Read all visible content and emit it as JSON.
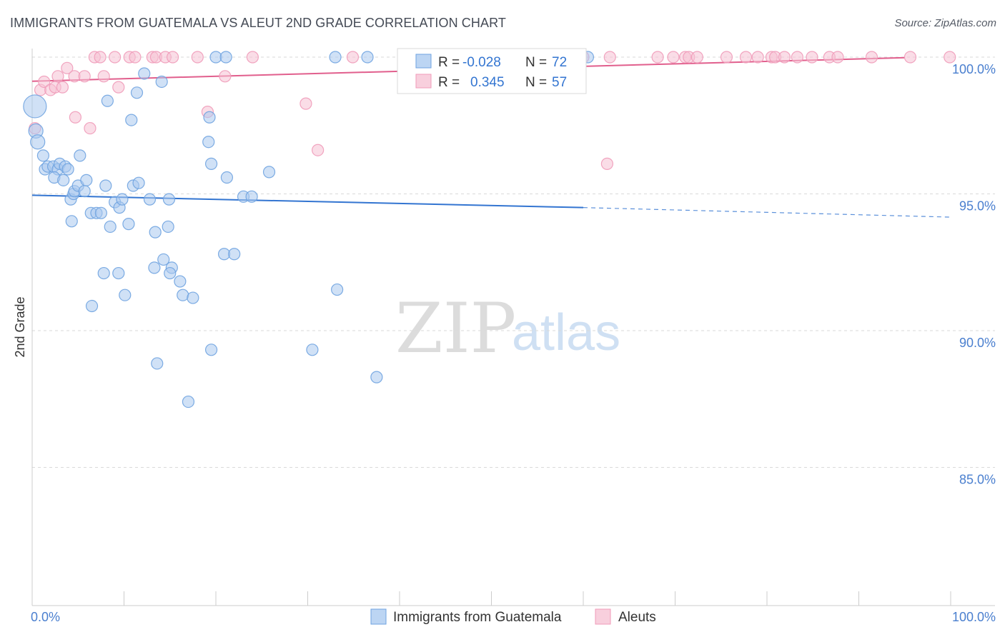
{
  "chart_data": {
    "type": "scatter",
    "title": "IMMIGRANTS FROM GUATEMALA VS ALEUT 2ND GRADE CORRELATION CHART",
    "source": "Source: ZipAtlas.com",
    "xlabel": "",
    "ylabel": "2nd Grade",
    "xlim": [
      0,
      100
    ],
    "ylim": [
      80.5,
      100.8
    ],
    "x_tick_labels": [
      {
        "value": 0,
        "label": "0.0%"
      },
      {
        "value": 100,
        "label": "100.0%"
      }
    ],
    "x_minor_ticks": [
      0,
      10,
      20,
      30,
      40,
      50,
      60,
      70,
      80,
      90,
      100
    ],
    "y_ticks": [
      {
        "value": 100,
        "label": "100.0%"
      },
      {
        "value": 95,
        "label": "95.0%"
      },
      {
        "value": 90,
        "label": "90.0%"
      },
      {
        "value": 85,
        "label": "85.0%"
      }
    ],
    "watermark": {
      "zip": "ZIP",
      "atlas": "atlas"
    },
    "series": [
      {
        "name": "Immigrants from Guatemala",
        "color": "#6fa3e0",
        "fill": "#a9c8ef",
        "line_color": "#3375d1",
        "r_label": "R =",
        "r_value": "-0.028",
        "n_label": "N =",
        "n_value": "72",
        "trend": {
          "x1": 0,
          "y1": 94.95,
          "x2": 60,
          "y2": 94.5,
          "dash_to_x": 100,
          "dash_to_y": 94.15
        },
        "points": [
          [
            0.3,
            98.2,
            16
          ],
          [
            0.4,
            97.3,
            10
          ],
          [
            0.6,
            96.9,
            10
          ],
          [
            1.2,
            96.4,
            8
          ],
          [
            1.4,
            95.9,
            8
          ],
          [
            1.7,
            96.0,
            8
          ],
          [
            2.3,
            96.0,
            8
          ],
          [
            2.8,
            95.9,
            8
          ],
          [
            3.0,
            96.1,
            8
          ],
          [
            2.4,
            95.6,
            8
          ],
          [
            3.4,
            95.5,
            8
          ],
          [
            3.6,
            96.0,
            8
          ],
          [
            3.9,
            95.9,
            8
          ],
          [
            4.2,
            94.8,
            8
          ],
          [
            4.5,
            95.0,
            8
          ],
          [
            5.2,
            96.4,
            8
          ],
          [
            4.6,
            95.1,
            8
          ],
          [
            5.0,
            95.3,
            8
          ],
          [
            5.7,
            95.1,
            8
          ],
          [
            5.9,
            95.5,
            8
          ],
          [
            6.4,
            94.3,
            8
          ],
          [
            7.0,
            94.3,
            8
          ],
          [
            7.5,
            94.3,
            8
          ],
          [
            8.0,
            95.3,
            8
          ],
          [
            8.5,
            93.8,
            8
          ],
          [
            9.0,
            94.7,
            8
          ],
          [
            9.5,
            94.5,
            8
          ],
          [
            9.8,
            94.8,
            8
          ],
          [
            10.5,
            93.9,
            8
          ],
          [
            11.0,
            95.3,
            8
          ],
          [
            11.6,
            95.4,
            8
          ],
          [
            4.3,
            94.0,
            8
          ],
          [
            8.2,
            98.4,
            8
          ],
          [
            10.8,
            97.7,
            8
          ],
          [
            11.4,
            98.7,
            8
          ],
          [
            12.2,
            99.4,
            8
          ],
          [
            14.1,
            99.1,
            8
          ],
          [
            12.8,
            94.8,
            8
          ],
          [
            14.9,
            94.8,
            8
          ],
          [
            13.4,
            93.6,
            8
          ],
          [
            14.8,
            93.8,
            8
          ],
          [
            14.3,
            92.6,
            8
          ],
          [
            13.3,
            92.3,
            8
          ],
          [
            15.2,
            92.3,
            8
          ],
          [
            15.0,
            92.1,
            8
          ],
          [
            16.1,
            91.8,
            8
          ],
          [
            7.8,
            92.1,
            8
          ],
          [
            9.4,
            92.1,
            8
          ],
          [
            10.1,
            91.3,
            8
          ],
          [
            6.5,
            90.9,
            8
          ],
          [
            16.4,
            91.3,
            8
          ],
          [
            17.5,
            91.2,
            8
          ],
          [
            13.6,
            88.8,
            8
          ],
          [
            17.0,
            87.4,
            8
          ],
          [
            19.2,
            96.9,
            8
          ],
          [
            19.3,
            97.8,
            8
          ],
          [
            19.5,
            96.1,
            8
          ],
          [
            21.2,
            95.6,
            8
          ],
          [
            23.0,
            94.9,
            8
          ],
          [
            23.9,
            94.9,
            8
          ],
          [
            20.9,
            92.8,
            8
          ],
          [
            22.0,
            92.8,
            8
          ],
          [
            19.5,
            89.3,
            8
          ],
          [
            25.8,
            95.8,
            8
          ],
          [
            33.2,
            91.5,
            8
          ],
          [
            30.5,
            89.3,
            8
          ],
          [
            37.5,
            88.3,
            8
          ],
          [
            20.0,
            100.0,
            8
          ],
          [
            21.1,
            100.0,
            8
          ],
          [
            33.0,
            100.0,
            8
          ],
          [
            36.5,
            100.0,
            8
          ],
          [
            60.5,
            100.0,
            8
          ]
        ]
      },
      {
        "name": "Aleuts",
        "color": "#f09bb9",
        "fill": "#f6c1d3",
        "line_color": "#e15f8d",
        "r_label": "R =",
        "r_value": "0.345",
        "n_label": "N =",
        "n_value": "57",
        "trend": {
          "x1": 0,
          "y1": 99.12,
          "x2": 95,
          "y2": 99.98
        },
        "points": [
          [
            0.3,
            97.4,
            8
          ],
          [
            0.9,
            98.8,
            8
          ],
          [
            1.3,
            99.1,
            8
          ],
          [
            2.0,
            98.8,
            8
          ],
          [
            2.5,
            98.9,
            8
          ],
          [
            2.8,
            99.3,
            8
          ],
          [
            3.3,
            98.9,
            8
          ],
          [
            3.8,
            99.6,
            8
          ],
          [
            4.6,
            99.3,
            8
          ],
          [
            4.7,
            97.8,
            8
          ],
          [
            5.7,
            99.3,
            8
          ],
          [
            6.3,
            97.4,
            8
          ],
          [
            7.8,
            99.3,
            8
          ],
          [
            9.4,
            98.9,
            8
          ],
          [
            6.8,
            100.0,
            8
          ],
          [
            7.4,
            100.0,
            8
          ],
          [
            9.0,
            100.0,
            8
          ],
          [
            10.6,
            100.0,
            8
          ],
          [
            11.2,
            100.0,
            8
          ],
          [
            13.1,
            100.0,
            8
          ],
          [
            13.5,
            100.0,
            8
          ],
          [
            14.5,
            100.0,
            8
          ],
          [
            15.3,
            100.0,
            8
          ],
          [
            18.0,
            100.0,
            8
          ],
          [
            19.1,
            98.0,
            8
          ],
          [
            21.0,
            99.3,
            8
          ],
          [
            24.0,
            100.0,
            8
          ],
          [
            29.8,
            98.3,
            8
          ],
          [
            31.1,
            96.6,
            8
          ],
          [
            34.9,
            100.0,
            8
          ],
          [
            41.5,
            100.0,
            8
          ],
          [
            45.5,
            100.0,
            8
          ],
          [
            50.8,
            100.0,
            8
          ],
          [
            53.0,
            100.0,
            8
          ],
          [
            55.9,
            100.0,
            8
          ],
          [
            60.0,
            100.0,
            8
          ],
          [
            62.6,
            96.1,
            8
          ],
          [
            62.9,
            100.0,
            8
          ],
          [
            68.1,
            100.0,
            8
          ],
          [
            69.8,
            100.0,
            8
          ],
          [
            71.1,
            100.0,
            8
          ],
          [
            71.5,
            100.0,
            8
          ],
          [
            72.4,
            100.0,
            8
          ],
          [
            75.6,
            100.0,
            8
          ],
          [
            77.7,
            100.0,
            8
          ],
          [
            79.0,
            100.0,
            8
          ],
          [
            80.5,
            100.0,
            8
          ],
          [
            80.9,
            100.0,
            8
          ],
          [
            81.9,
            100.0,
            8
          ],
          [
            83.3,
            100.0,
            8
          ],
          [
            84.9,
            100.0,
            8
          ],
          [
            86.8,
            100.0,
            8
          ],
          [
            87.7,
            100.0,
            8
          ],
          [
            91.4,
            100.0,
            8
          ],
          [
            95.6,
            100.0,
            8
          ],
          [
            99.9,
            100.0,
            8
          ],
          [
            58.0,
            100.0,
            8
          ]
        ]
      }
    ]
  }
}
